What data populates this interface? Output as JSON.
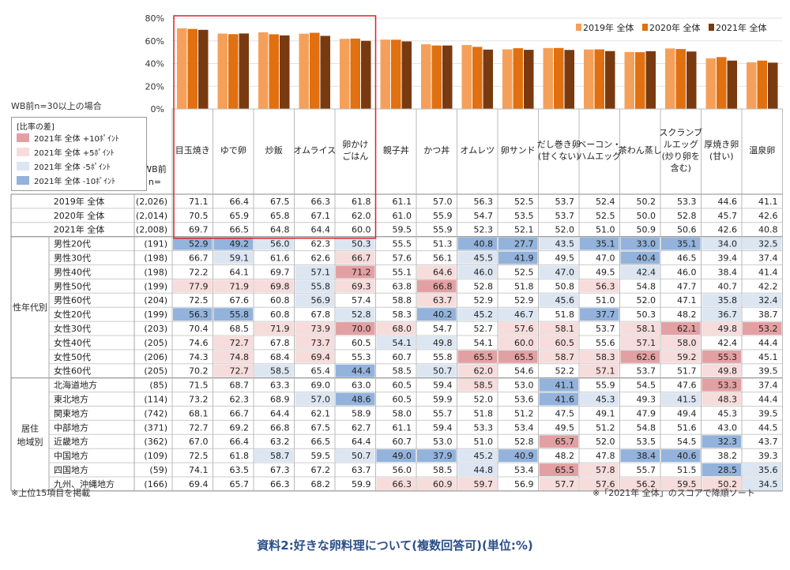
{
  "chart_data": {
    "type": "bar",
    "categories": [
      "目玉焼き",
      "ゆで卵",
      "炒飯",
      "オムライス",
      "卵かけ\nごはん",
      "親子丼",
      "かつ丼",
      "オムレツ",
      "卵サンド",
      "だし巻き卵\n(甘くない)",
      "ベーコン・\nハムエッグ",
      "茶わん蒸し",
      "スクランブ\nルエッグ\n(炒り卵を\n含む)",
      "厚焼き卵\n(甘い)",
      "温泉卵"
    ],
    "series": [
      {
        "name": "2019年 全体",
        "color": "#f5a05a",
        "values": [
          71.1,
          66.4,
          67.5,
          66.3,
          61.8,
          61.1,
          57.0,
          56.3,
          52.5,
          53.7,
          52.4,
          50.2,
          53.3,
          44.6,
          41.1
        ]
      },
      {
        "name": "2020年 全体",
        "color": "#e07010",
        "values": [
          70.5,
          65.9,
          65.8,
          67.1,
          62.0,
          61.0,
          55.9,
          54.7,
          53.5,
          53.7,
          52.5,
          50.0,
          52.8,
          45.7,
          42.6
        ]
      },
      {
        "name": "2021年 全体",
        "color": "#7a3a10",
        "values": [
          69.7,
          66.5,
          64.8,
          64.4,
          60.0,
          59.5,
          55.9,
          52.3,
          52.1,
          52.0,
          51.0,
          50.9,
          50.6,
          42.6,
          40.8
        ]
      }
    ],
    "yticks": [
      "0%",
      "20%",
      "40%",
      "60%",
      "80%"
    ],
    "ylim": [
      0,
      80
    ],
    "legend_position": "top-right"
  },
  "labels": {
    "subset_note": "WB前n=30以上の場合",
    "legend_title": "[比率の差]",
    "legend_items": [
      {
        "label": "2021年 全体 +10ﾎﾟｲﾝﾄ",
        "color": "#e3a0a3"
      },
      {
        "label": "2021年 全体 +5ﾎﾟｲﾝﾄ",
        "color": "#f7dcdc"
      },
      {
        "label": "2021年 全体 -5ﾎﾟｲﾝﾄ",
        "color": "#dce6f2"
      },
      {
        "label": "2021年 全体 -10ﾎﾟｲﾝﾄ",
        "color": "#93b3dc"
      }
    ],
    "wb_header": "WB前\nn=",
    "group_gender_age": "性年代別",
    "group_region": "居住\n地域別",
    "footnote_left": "※上位15項目を掲載",
    "footnote_right": "※「2021年 全体」のスコアで降順ソート",
    "caption": "資料2:好きな卵料理について(複数回答可)(単位:%)"
  },
  "table": {
    "total_rows": [
      {
        "label": "2019年 全体",
        "n": "(2,026)",
        "values": [
          "71.1",
          "66.4",
          "67.5",
          "66.3",
          "61.8",
          "61.1",
          "57.0",
          "56.3",
          "52.5",
          "53.7",
          "52.4",
          "50.2",
          "53.3",
          "44.6",
          "41.1"
        ]
      },
      {
        "label": "2020年 全体",
        "n": "(2,014)",
        "values": [
          "70.5",
          "65.9",
          "65.8",
          "67.1",
          "62.0",
          "61.0",
          "55.9",
          "54.7",
          "53.5",
          "53.7",
          "52.5",
          "50.0",
          "52.8",
          "45.7",
          "42.6"
        ]
      },
      {
        "label": "2021年 全体",
        "n": "(2,008)",
        "values": [
          "69.7",
          "66.5",
          "64.8",
          "64.4",
          "60.0",
          "59.5",
          "55.9",
          "52.3",
          "52.1",
          "52.0",
          "51.0",
          "50.9",
          "50.6",
          "42.6",
          "40.8"
        ]
      }
    ],
    "gender_rows": [
      {
        "label": "男性20代",
        "n": "(191)",
        "values": [
          "52.9",
          "49.2",
          "56.0",
          "62.3",
          "50.3",
          "55.5",
          "51.3",
          "40.8",
          "27.7",
          "43.5",
          "35.1",
          "33.0",
          "35.1",
          "34.0",
          "32.5"
        ]
      },
      {
        "label": "男性30代",
        "n": "(198)",
        "values": [
          "66.7",
          "59.1",
          "61.6",
          "62.6",
          "66.7",
          "57.6",
          "56.1",
          "45.5",
          "41.9",
          "49.5",
          "47.0",
          "40.4",
          "46.5",
          "39.4",
          "37.4"
        ]
      },
      {
        "label": "男性40代",
        "n": "(198)",
        "values": [
          "72.2",
          "64.1",
          "69.7",
          "57.1",
          "71.2",
          "55.1",
          "64.6",
          "46.0",
          "52.5",
          "47.0",
          "49.5",
          "42.4",
          "46.0",
          "38.4",
          "41.4"
        ]
      },
      {
        "label": "男性50代",
        "n": "(199)",
        "values": [
          "77.9",
          "71.9",
          "69.8",
          "55.8",
          "69.3",
          "63.8",
          "66.8",
          "52.8",
          "51.8",
          "50.8",
          "56.3",
          "54.8",
          "47.7",
          "40.7",
          "42.2"
        ]
      },
      {
        "label": "男性60代",
        "n": "(204)",
        "values": [
          "72.5",
          "67.6",
          "60.8",
          "56.9",
          "57.4",
          "58.8",
          "63.7",
          "52.9",
          "52.9",
          "45.6",
          "51.0",
          "52.0",
          "47.1",
          "35.8",
          "32.4"
        ]
      },
      {
        "label": "女性20代",
        "n": "(199)",
        "values": [
          "56.3",
          "55.8",
          "60.8",
          "67.8",
          "52.8",
          "58.3",
          "40.2",
          "45.2",
          "46.7",
          "51.8",
          "37.7",
          "50.3",
          "48.2",
          "36.7",
          "38.7"
        ]
      },
      {
        "label": "女性30代",
        "n": "(203)",
        "values": [
          "70.4",
          "68.5",
          "71.9",
          "73.9",
          "70.0",
          "68.0",
          "54.7",
          "52.7",
          "57.6",
          "58.1",
          "53.7",
          "58.1",
          "62.1",
          "49.8",
          "53.2"
        ]
      },
      {
        "label": "女性40代",
        "n": "(205)",
        "values": [
          "74.6",
          "72.7",
          "67.8",
          "73.7",
          "60.5",
          "54.1",
          "49.8",
          "54.1",
          "60.0",
          "60.5",
          "55.6",
          "57.1",
          "58.0",
          "42.4",
          "44.4"
        ]
      },
      {
        "label": "女性50代",
        "n": "(206)",
        "values": [
          "74.3",
          "74.8",
          "68.4",
          "69.4",
          "55.3",
          "60.7",
          "55.8",
          "65.5",
          "65.5",
          "58.7",
          "58.3",
          "62.6",
          "59.2",
          "55.3",
          "45.1"
        ]
      },
      {
        "label": "女性60代",
        "n": "(205)",
        "values": [
          "70.2",
          "72.7",
          "58.5",
          "65.4",
          "44.4",
          "58.5",
          "50.7",
          "62.0",
          "54.6",
          "52.2",
          "57.1",
          "53.7",
          "51.7",
          "49.8",
          "39.5"
        ]
      }
    ],
    "region_rows": [
      {
        "label": "北海道地方",
        "n": "(85)",
        "values": [
          "71.5",
          "68.7",
          "63.3",
          "69.0",
          "63.0",
          "60.5",
          "59.4",
          "58.5",
          "53.0",
          "41.1",
          "55.9",
          "54.5",
          "47.6",
          "53.3",
          "37.4"
        ]
      },
      {
        "label": "東北地方",
        "n": "(114)",
        "values": [
          "73.2",
          "62.3",
          "68.9",
          "57.0",
          "48.6",
          "60.5",
          "59.9",
          "52.0",
          "53.6",
          "41.6",
          "45.3",
          "49.3",
          "41.5",
          "48.3",
          "44.4"
        ]
      },
      {
        "label": "関東地方",
        "n": "(742)",
        "values": [
          "68.1",
          "66.7",
          "64.4",
          "62.1",
          "58.9",
          "58.0",
          "55.7",
          "51.8",
          "51.2",
          "47.5",
          "49.1",
          "47.9",
          "49.4",
          "45.3",
          "39.5"
        ]
      },
      {
        "label": "中部地方",
        "n": "(371)",
        "values": [
          "72.7",
          "69.2",
          "66.8",
          "67.5",
          "62.7",
          "61.1",
          "59.4",
          "53.3",
          "53.4",
          "49.5",
          "51.2",
          "54.8",
          "51.6",
          "43.0",
          "44.5"
        ]
      },
      {
        "label": "近畿地方",
        "n": "(362)",
        "values": [
          "67.0",
          "66.4",
          "63.2",
          "66.5",
          "64.4",
          "60.7",
          "53.0",
          "51.0",
          "52.8",
          "65.7",
          "52.0",
          "53.5",
          "54.5",
          "32.3",
          "43.7"
        ]
      },
      {
        "label": "中国地方",
        "n": "(109)",
        "values": [
          "72.5",
          "61.8",
          "58.7",
          "59.5",
          "50.7",
          "49.0",
          "37.9",
          "45.2",
          "40.9",
          "48.2",
          "47.8",
          "38.4",
          "40.6",
          "38.2",
          "39.3"
        ]
      },
      {
        "label": "四国地方",
        "n": "(59)",
        "values": [
          "74.1",
          "63.5",
          "67.3",
          "67.2",
          "63.7",
          "56.0",
          "58.5",
          "44.8",
          "53.4",
          "65.5",
          "57.8",
          "55.7",
          "51.5",
          "28.5",
          "35.6"
        ]
      },
      {
        "label": "九州、沖縄地方",
        "n": "(166)",
        "values": [
          "69.4",
          "65.7",
          "66.3",
          "68.2",
          "59.9",
          "66.3",
          "60.9",
          "59.7",
          "56.9",
          "57.7",
          "57.6",
          "56.2",
          "59.5",
          "50.2",
          "34.5"
        ]
      }
    ]
  }
}
